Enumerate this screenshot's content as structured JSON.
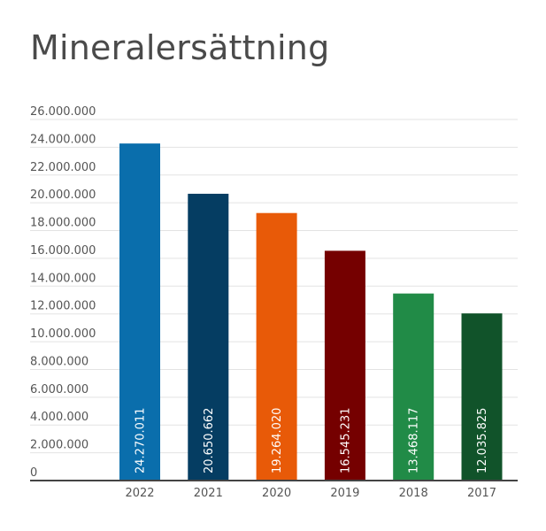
{
  "chart_data": {
    "type": "bar",
    "title": "Mineralersättning",
    "xlabel": "",
    "ylabel": "",
    "categories": [
      "2022",
      "2021",
      "2020",
      "2019",
      "2018",
      "2017"
    ],
    "values": [
      24270011,
      20650662,
      19264020,
      16545231,
      13468117,
      12035825
    ],
    "value_labels": [
      "24.270.011",
      "20.650.662",
      "19.264.020",
      "16.545.231",
      "13.468.117",
      "12.035.825"
    ],
    "colors": [
      "#0a6eac",
      "#053d62",
      "#e85a08",
      "#750000",
      "#218b47",
      "#11532a"
    ],
    "ylim": [
      0,
      26000000
    ],
    "y_ticks": [
      0,
      2000000,
      4000000,
      6000000,
      8000000,
      10000000,
      12000000,
      14000000,
      16000000,
      18000000,
      20000000,
      22000000,
      24000000,
      26000000
    ],
    "y_tick_labels": [
      "0",
      "2.000.000",
      "4.000.000",
      "6.000.000",
      "8.000.000",
      "10.000.000",
      "12.000.000",
      "14.000.000",
      "16.000.000",
      "18.000.000",
      "20.000.000",
      "22.000.000",
      "24.000.000",
      "26.000.000"
    ],
    "grid": true,
    "gridline_color": "#e3e3e3",
    "axis_color": "#444444",
    "value_label_orientation": "vertical"
  }
}
